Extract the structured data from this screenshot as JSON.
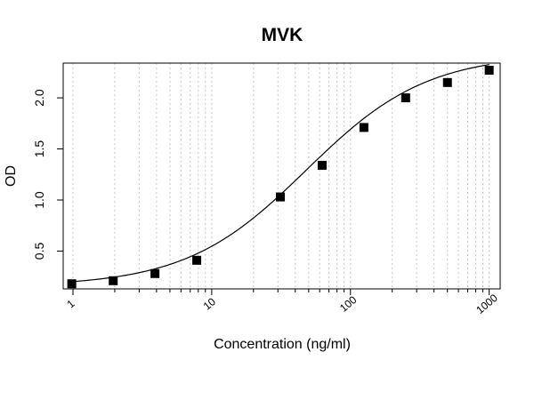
{
  "chart_data": {
    "type": "scatter",
    "title": "MVK",
    "xlabel": "Concentration (ng/ml)",
    "ylabel": "OD",
    "x_scale": "log",
    "xlim": [
      0.85,
      1200
    ],
    "ylim": [
      0.13,
      2.34
    ],
    "x_ticks": [
      1,
      10,
      100,
      1000
    ],
    "x_tick_labels": [
      "1",
      "10",
      "100",
      "1000"
    ],
    "y_ticks": [
      0.5,
      1.0,
      1.5,
      2.0
    ],
    "y_tick_labels": [
      "0.5",
      "1.0",
      "1.5",
      "2.0"
    ],
    "grid": "vertical dotted at log decades",
    "series": [
      {
        "marker": "square",
        "x": [
          0.98,
          1.95,
          3.9,
          7.8,
          31.25,
          62.5,
          125,
          250,
          500,
          1000
        ],
        "y": [
          0.18,
          0.21,
          0.28,
          0.41,
          1.03,
          1.34,
          1.71,
          2.0,
          2.15,
          2.27
        ]
      }
    ],
    "fit_curve": {
      "type": "4PL",
      "bottom": 0.155,
      "top": 2.43,
      "ec50": 48,
      "hill": 1.0
    },
    "colors": {
      "marker": "#000000",
      "curve": "#000000",
      "grid": "#c8c8c8",
      "frame": "#000000"
    }
  }
}
